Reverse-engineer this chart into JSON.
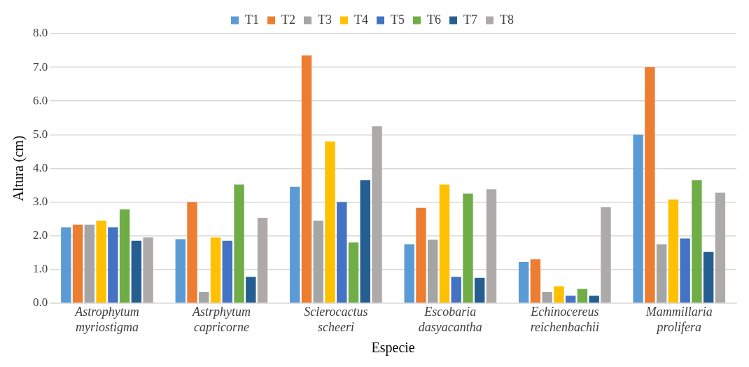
{
  "chart_data": {
    "type": "bar",
    "xlabel": "Especie",
    "ylabel": "Altura (cm)",
    "categories": [
      "Astrophytum myriostigma",
      "Astrphytum capricorne",
      "Sclerocactus scheeri",
      "Escobaria dasyacantha",
      "Echinocereus reichenbachii",
      "Mammillaria prolifera"
    ],
    "series": [
      {
        "name": "T1",
        "color": "#5b9bd5",
        "values": [
          2.25,
          1.9,
          3.45,
          1.75,
          1.22,
          5.0
        ]
      },
      {
        "name": "T2",
        "color": "#ed7d31",
        "values": [
          2.33,
          3.0,
          7.35,
          2.83,
          1.3,
          7.0
        ]
      },
      {
        "name": "T3",
        "color": "#a5a5a5",
        "values": [
          2.33,
          0.33,
          2.45,
          1.88,
          0.33,
          1.75
        ]
      },
      {
        "name": "T4",
        "color": "#ffc000",
        "values": [
          2.45,
          1.95,
          4.8,
          3.52,
          0.5,
          3.08
        ]
      },
      {
        "name": "T5",
        "color": "#4472c4",
        "values": [
          2.25,
          1.85,
          3.0,
          0.78,
          0.22,
          1.92
        ]
      },
      {
        "name": "T6",
        "color": "#70ad47",
        "values": [
          2.78,
          3.52,
          1.8,
          3.25,
          0.42,
          3.65
        ]
      },
      {
        "name": "T7",
        "color": "#255e91",
        "values": [
          1.85,
          0.78,
          3.65,
          0.75,
          0.22,
          1.52
        ]
      },
      {
        "name": "T8",
        "color": "#aeaaaa",
        "values": [
          1.95,
          2.53,
          5.25,
          3.38,
          2.85,
          3.28
        ]
      }
    ],
    "ylim": [
      0,
      8
    ],
    "yticks": [
      {
        "value": 0,
        "label": "0.0"
      },
      {
        "value": 1,
        "label": "1.0"
      },
      {
        "value": 2,
        "label": "2.0"
      },
      {
        "value": 3,
        "label": "3.0"
      },
      {
        "value": 4,
        "label": "4.0"
      },
      {
        "value": 5,
        "label": "5.0"
      },
      {
        "value": 6,
        "label": "6.0"
      },
      {
        "value": 7,
        "label": "7.0"
      },
      {
        "value": 8,
        "label": "8.0"
      }
    ],
    "grid": "y",
    "legend": "top"
  }
}
